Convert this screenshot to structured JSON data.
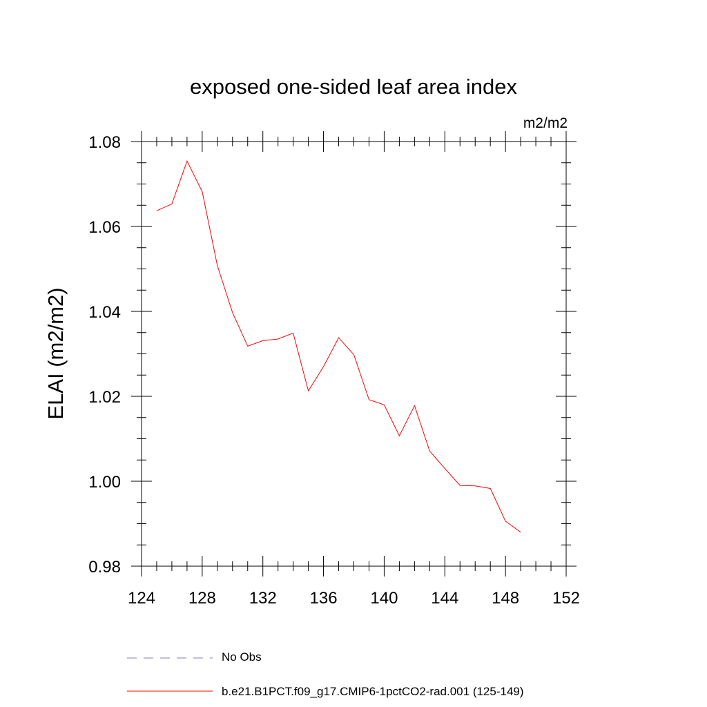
{
  "chart_data": {
    "type": "line",
    "title": "exposed one-sided leaf area index",
    "units": "m2/m2",
    "ylabel": "ELAI  (m2/m2)",
    "xlabel": "",
    "xlim": [
      124,
      152
    ],
    "ylim": [
      0.98,
      1.08
    ],
    "x_ticks": [
      "124",
      "128",
      "132",
      "136",
      "140",
      "144",
      "148",
      "152"
    ],
    "y_ticks": [
      "0.98",
      "1.00",
      "1.02",
      "1.04",
      "1.06",
      "1.08"
    ],
    "series": [
      {
        "name": "b.e21.B1PCT.f09_g17.CMIP6-1pctCO2-rad.001 (125-149)",
        "color": "#ff0000",
        "style": "solid",
        "x": [
          125,
          126,
          127,
          128,
          129,
          130,
          131,
          132,
          133,
          134,
          135,
          136,
          137,
          138,
          139,
          140,
          141,
          142,
          143,
          144,
          145,
          146,
          147,
          148,
          149
        ],
        "y": [
          1.0637,
          1.0653,
          1.0754,
          1.0682,
          1.0508,
          1.0397,
          1.0318,
          1.0331,
          1.0335,
          1.0349,
          1.0213,
          1.027,
          1.0338,
          1.0298,
          1.0192,
          1.018,
          1.0107,
          1.0178,
          1.0071,
          1.003,
          0.999,
          0.9989,
          0.9983,
          0.9906,
          0.988
        ]
      }
    ],
    "legend": [
      {
        "label": "No Obs",
        "color": "#7f7fbf",
        "style": "dashed"
      },
      {
        "label": "b.e21.B1PCT.f09_g17.CMIP6-1pctCO2-rad.001 (125-149)",
        "color": "#ff0000",
        "style": "solid"
      }
    ],
    "legend_position": "bottom",
    "grid": false
  }
}
